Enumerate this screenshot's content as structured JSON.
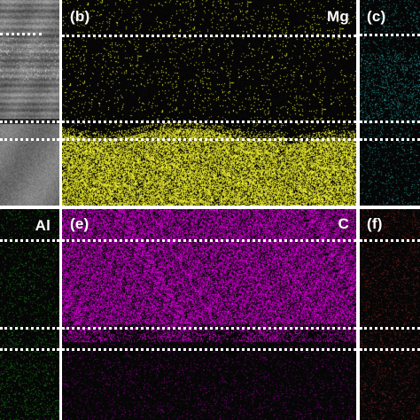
{
  "figure": {
    "panels": [
      {
        "id": "a",
        "label": "",
        "element": "",
        "kind": "sem"
      },
      {
        "id": "b",
        "label": "(b)",
        "element": "Mg",
        "kind": "map",
        "color": "#ffff33"
      },
      {
        "id": "c",
        "label": "(c)",
        "element": "",
        "kind": "map",
        "color": "#2ad4d4"
      },
      {
        "id": "d",
        "label": "",
        "element": "Al",
        "kind": "map",
        "color": "#22c222"
      },
      {
        "id": "e",
        "label": "(e)",
        "element": "C",
        "kind": "map",
        "color": "#e000e0"
      },
      {
        "id": "f",
        "label": "(f)",
        "element": "",
        "kind": "map",
        "color": "#c43030"
      }
    ]
  }
}
